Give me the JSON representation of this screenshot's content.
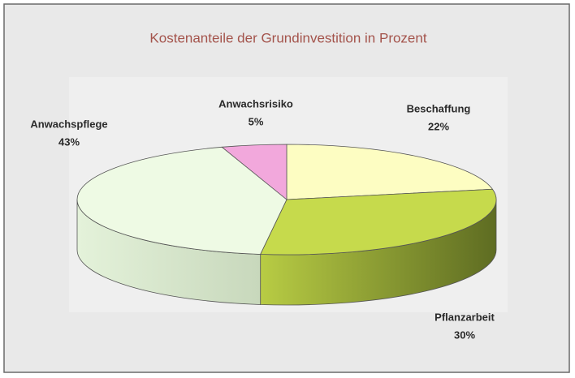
{
  "chart_data": {
    "type": "pie",
    "title": "Kostenanteile der Grundinvestition in Prozent",
    "categories": [
      "Beschaffung",
      "Pflanzarbeit",
      "Anwachspflege",
      "Anwachsrisiko"
    ],
    "values": [
      22,
      30,
      43,
      5
    ],
    "value_labels": [
      "22%",
      "30%",
      "43%",
      "5%"
    ],
    "colors": [
      "#fdfdc2",
      "#c6da4c",
      "#eefae4",
      "#f2a8dc"
    ]
  }
}
